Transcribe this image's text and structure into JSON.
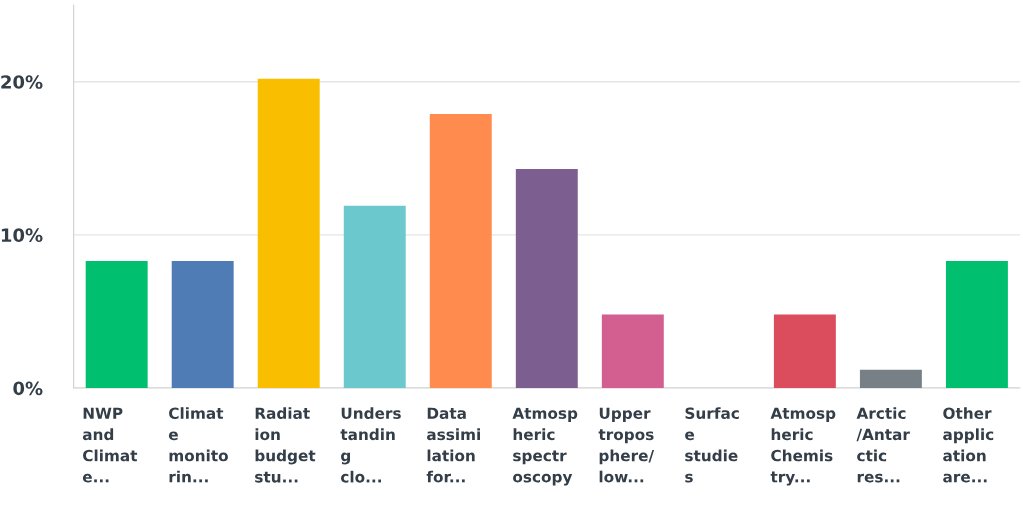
{
  "chart_data": {
    "type": "bar",
    "categories": [
      "NWP\nand\nClimat\ne...",
      "Climat\ne\nmonito\nrin...",
      "Radiat\nion\nbudget\nstu...",
      "Unders\ntandin\ng\nclo...",
      "Data\nassimi\nlation\nfor...",
      "Atmosp\nheric\nspectr\noscopy",
      "Upper\ntropos\nphere/\nlow...",
      "Surfac\ne\nstudie\ns",
      "Atmosp\nheric\nChemis\ntry...",
      "Arctic\n/Antar\nctic\nres...",
      "Other\napplic\nation\nare..."
    ],
    "values": [
      8.3,
      8.3,
      20.2,
      11.9,
      17.9,
      14.3,
      4.8,
      0,
      4.8,
      1.2,
      8.3
    ],
    "colors": [
      "#00bf6f",
      "#507cb6",
      "#f9be00",
      "#6bc8cd",
      "#ff8b4f",
      "#7d5e90",
      "#d25f90",
      "#dee8a9",
      "#db4d5c",
      "#768086",
      "#00bf6f"
    ],
    "ylim": [
      0,
      25
    ],
    "yticks": [
      {
        "value": 0,
        "label": "0%"
      },
      {
        "value": 10,
        "label": "10%"
      },
      {
        "value": 20,
        "label": "20%"
      }
    ],
    "grid": "y"
  }
}
